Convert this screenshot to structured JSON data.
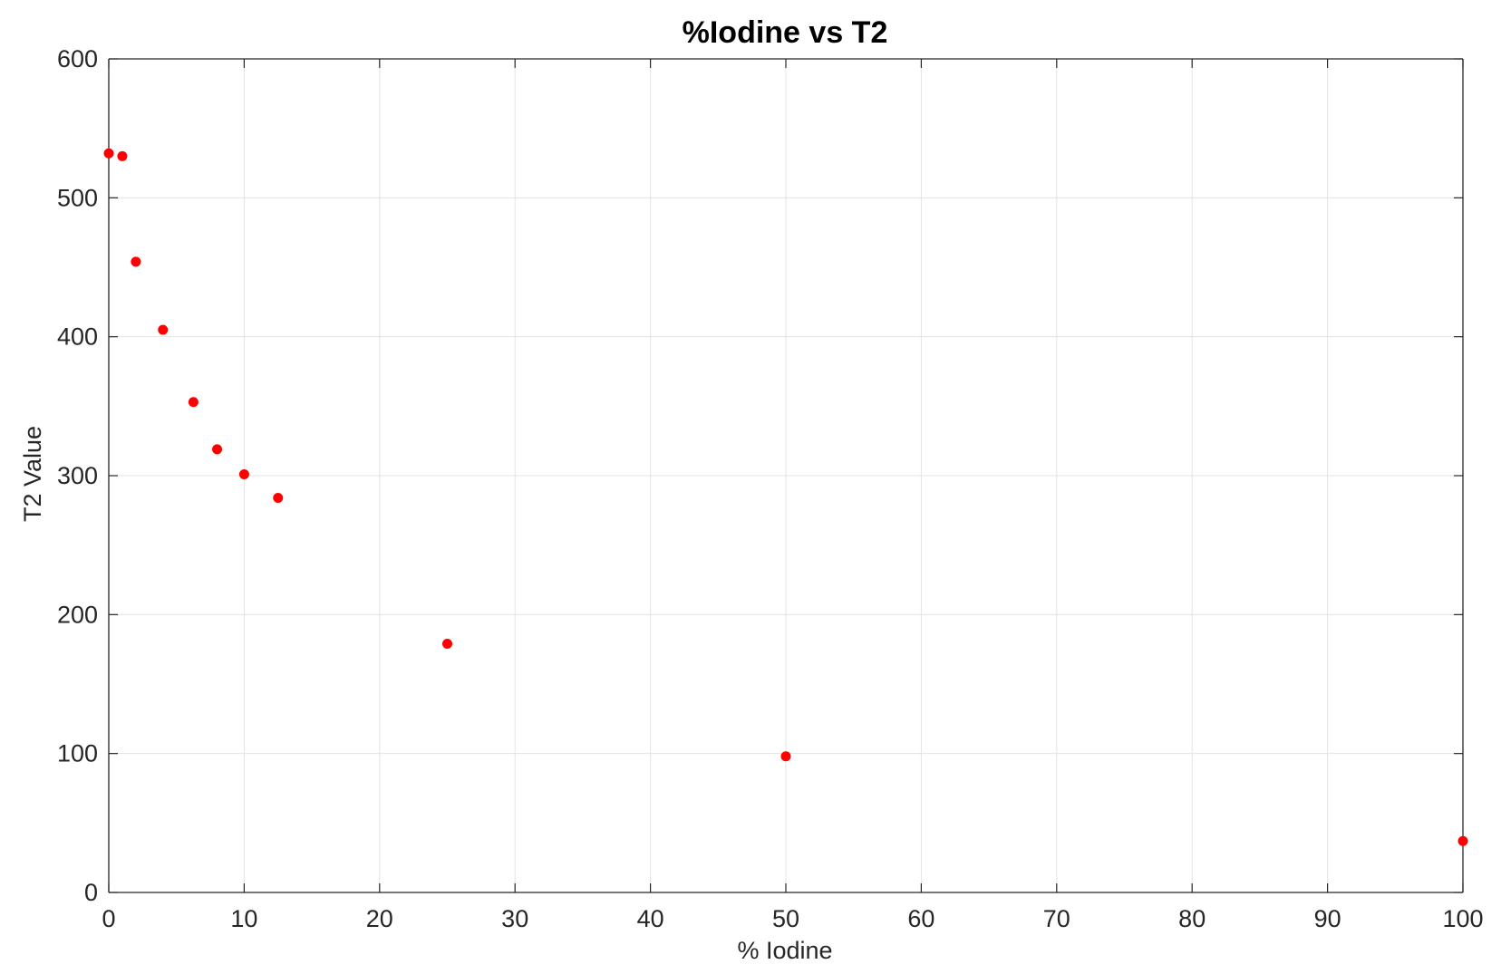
{
  "chart_data": {
    "type": "scatter",
    "title": "%Iodine vs T2",
    "xlabel": "% Iodine",
    "ylabel": "T2 Value",
    "xlim": [
      0,
      100
    ],
    "ylim": [
      0,
      600
    ],
    "xticks": [
      "0",
      "10",
      "20",
      "30",
      "40",
      "50",
      "60",
      "70",
      "80",
      "90",
      "100"
    ],
    "yticks": [
      "0",
      "100",
      "200",
      "300",
      "400",
      "500",
      "600"
    ],
    "grid": true,
    "marker_color": "#ff0000",
    "series": [
      {
        "x": [
          0,
          1,
          2,
          4,
          6.25,
          8,
          10,
          12.5,
          25,
          50,
          100
        ],
        "y": [
          532,
          530,
          454,
          405,
          353,
          319,
          301,
          284,
          179,
          98,
          37
        ]
      }
    ]
  }
}
